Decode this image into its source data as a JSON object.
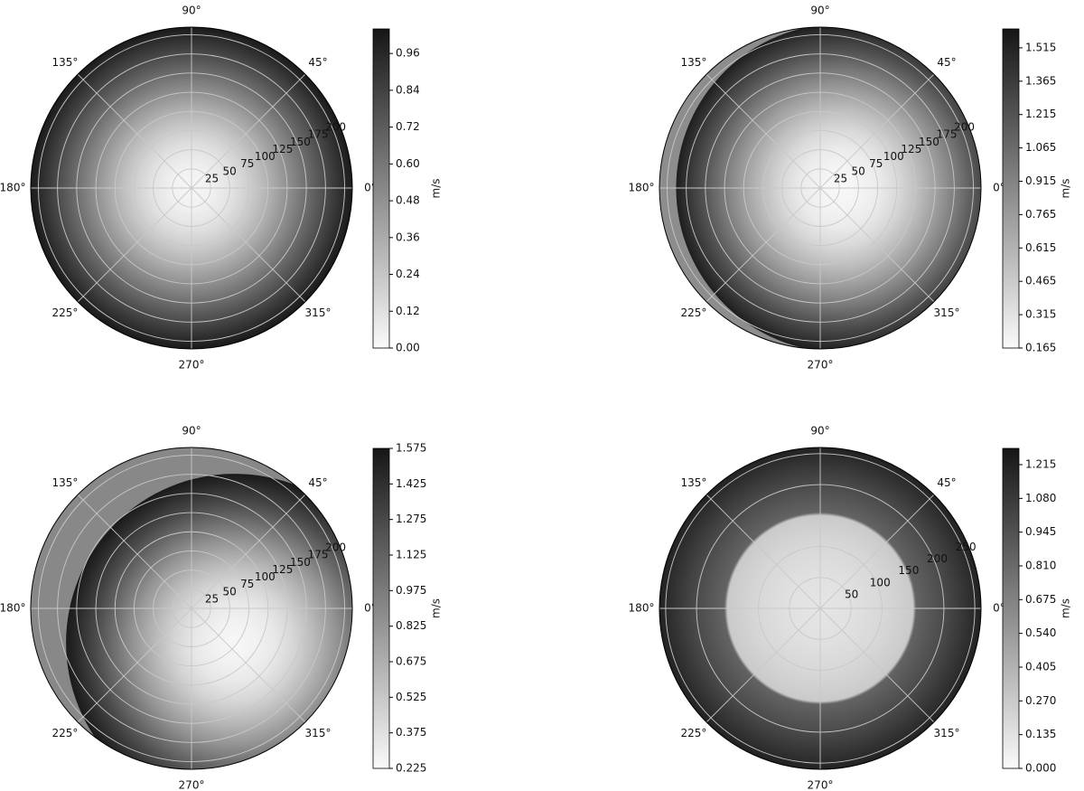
{
  "chart_data": [
    {
      "type": "polar-heatmap",
      "colorbar_label": "m/s",
      "thetaticks": [
        {
          "value": 0,
          "label": "0°"
        },
        {
          "value": 45,
          "label": "45°"
        },
        {
          "value": 90,
          "label": "90°"
        },
        {
          "value": 135,
          "label": "135°"
        },
        {
          "value": 180,
          "label": "180°"
        },
        {
          "value": 225,
          "label": "225°"
        },
        {
          "value": 270,
          "label": "270°"
        },
        {
          "value": 315,
          "label": "315°"
        }
      ],
      "rlim": [
        0,
        210
      ],
      "rticks": [
        25,
        50,
        75,
        100,
        125,
        150,
        175,
        200
      ],
      "clim": [
        0,
        1.04
      ],
      "cticks": [
        {
          "value": 0,
          "label": "0.00"
        },
        {
          "value": 0.12,
          "label": "0.12"
        },
        {
          "value": 0.24,
          "label": "0.24"
        },
        {
          "value": 0.36,
          "label": "0.36"
        },
        {
          "value": 0.48,
          "label": "0.48"
        },
        {
          "value": 0.6,
          "label": "0.60"
        },
        {
          "value": 0.72,
          "label": "0.72"
        },
        {
          "value": 0.84,
          "label": "0.84"
        },
        {
          "value": 0.96,
          "label": "0.96"
        }
      ],
      "field": {
        "r": [
          0,
          25,
          50,
          75,
          100,
          125,
          150,
          175,
          200,
          210
        ],
        "values": [
          0.02,
          0.04,
          0.1,
          0.2,
          0.33,
          0.48,
          0.64,
          0.8,
          0.96,
          1.02
        ]
      }
    },
    {
      "type": "polar-heatmap",
      "colorbar_label": "m/s",
      "thetaticks": [
        {
          "value": 0,
          "label": "0°"
        },
        {
          "value": 45,
          "label": "45°"
        },
        {
          "value": 90,
          "label": "90°"
        },
        {
          "value": 135,
          "label": "135°"
        },
        {
          "value": 180,
          "label": "180°"
        },
        {
          "value": 225,
          "label": "225°"
        },
        {
          "value": 270,
          "label": "270°"
        },
        {
          "value": 315,
          "label": "315°"
        }
      ],
      "rlim": [
        0,
        210
      ],
      "rticks": [
        25,
        50,
        75,
        100,
        125,
        150,
        175,
        200
      ],
      "clim": [
        0.165,
        1.6
      ],
      "cticks": [
        {
          "value": 0.165,
          "label": "0.165"
        },
        {
          "value": 0.315,
          "label": "0.315"
        },
        {
          "value": 0.465,
          "label": "0.465"
        },
        {
          "value": 0.615,
          "label": "0.615"
        },
        {
          "value": 0.765,
          "label": "0.765"
        },
        {
          "value": 0.915,
          "label": "0.915"
        },
        {
          "value": 1.065,
          "label": "1.065"
        },
        {
          "value": 1.215,
          "label": "1.215"
        },
        {
          "value": 1.365,
          "label": "1.365"
        },
        {
          "value": 1.515,
          "label": "1.515"
        }
      ],
      "field": {
        "r": [
          0,
          25,
          50,
          75,
          100,
          125,
          150,
          175,
          200,
          210
        ],
        "values": [
          0.18,
          0.2,
          0.26,
          0.38,
          0.55,
          0.75,
          0.98,
          1.22,
          1.45,
          1.55
        ]
      },
      "background_value": 0.85
    },
    {
      "type": "polar-heatmap",
      "colorbar_label": "m/s",
      "thetaticks": [
        {
          "value": 0,
          "label": "0°"
        },
        {
          "value": 45,
          "label": "45°"
        },
        {
          "value": 90,
          "label": "90°"
        },
        {
          "value": 135,
          "label": "135°"
        },
        {
          "value": 180,
          "label": "180°"
        },
        {
          "value": 225,
          "label": "225°"
        },
        {
          "value": 270,
          "label": "270°"
        },
        {
          "value": 315,
          "label": "315°"
        }
      ],
      "rlim": [
        0,
        210
      ],
      "rticks": [
        25,
        50,
        75,
        100,
        125,
        150,
        175,
        200
      ],
      "clim": [
        0.225,
        1.575
      ],
      "cticks": [
        {
          "value": 0.225,
          "label": "0.225"
        },
        {
          "value": 0.375,
          "label": "0.375"
        },
        {
          "value": 0.525,
          "label": "0.525"
        },
        {
          "value": 0.675,
          "label": "0.675"
        },
        {
          "value": 0.825,
          "label": "0.825"
        },
        {
          "value": 0.975,
          "label": "0.975"
        },
        {
          "value": 1.125,
          "label": "1.125"
        },
        {
          "value": 1.275,
          "label": "1.275"
        },
        {
          "value": 1.425,
          "label": "1.425"
        },
        {
          "value": 1.575,
          "label": "1.575"
        }
      ],
      "field": {
        "r": [
          0,
          25,
          50,
          75,
          100,
          125,
          150,
          175,
          200,
          210
        ],
        "values": [
          0.24,
          0.27,
          0.33,
          0.45,
          0.62,
          0.82,
          1.05,
          1.28,
          1.48,
          1.55
        ]
      },
      "background_value": 0.9
    },
    {
      "type": "polar-heatmap",
      "colorbar_label": "m/s",
      "thetaticks": [
        {
          "value": 0,
          "label": "0°"
        },
        {
          "value": 45,
          "label": "45°"
        },
        {
          "value": 90,
          "label": "90°"
        },
        {
          "value": 135,
          "label": "135°"
        },
        {
          "value": 180,
          "label": "180°"
        },
        {
          "value": 225,
          "label": "225°"
        },
        {
          "value": 270,
          "label": "270°"
        },
        {
          "value": 315,
          "label": "315°"
        }
      ],
      "rlim": [
        0,
        260
      ],
      "rticks": [
        50,
        100,
        150,
        200,
        250
      ],
      "clim": [
        0,
        1.28
      ],
      "cticks": [
        {
          "value": 0,
          "label": "0.000"
        },
        {
          "value": 0.135,
          "label": "0.135"
        },
        {
          "value": 0.27,
          "label": "0.270"
        },
        {
          "value": 0.405,
          "label": "0.405"
        },
        {
          "value": 0.54,
          "label": "0.540"
        },
        {
          "value": 0.675,
          "label": "0.675"
        },
        {
          "value": 0.81,
          "label": "0.810"
        },
        {
          "value": 0.945,
          "label": "0.945"
        },
        {
          "value": 1.08,
          "label": "1.080"
        },
        {
          "value": 1.215,
          "label": "1.215"
        }
      ],
      "field": {
        "r": [
          0,
          50,
          100,
          150,
          155,
          200,
          250,
          260
        ],
        "values": [
          0.12,
          0.14,
          0.19,
          0.27,
          0.85,
          0.98,
          1.17,
          1.22
        ]
      }
    }
  ]
}
